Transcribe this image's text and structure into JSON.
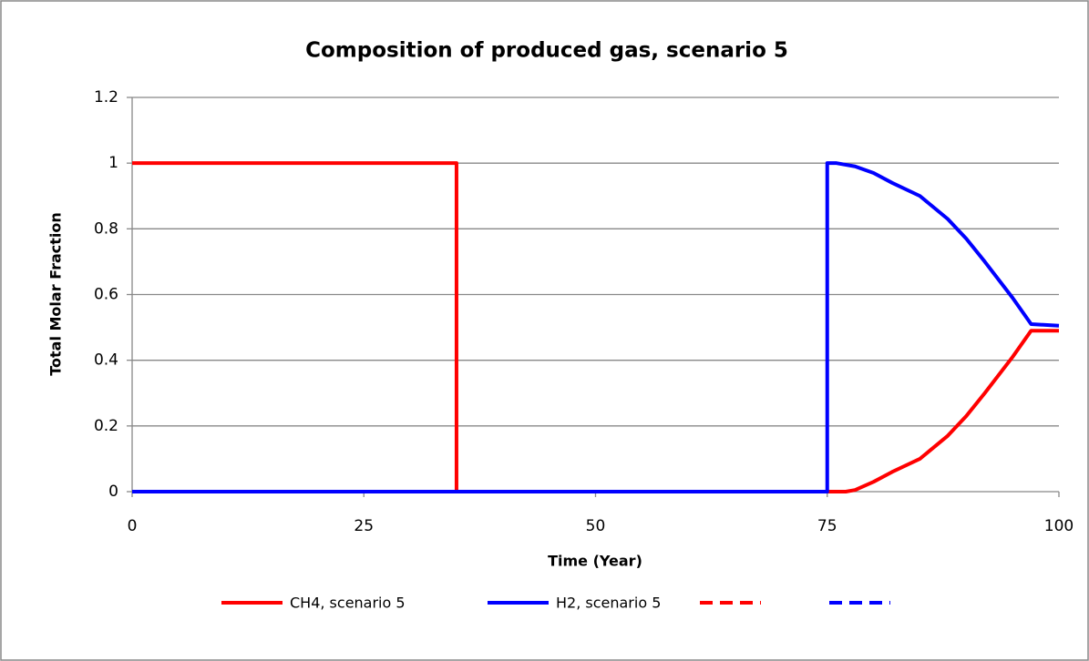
{
  "chart_data": {
    "type": "line",
    "title": "Composition of produced gas, scenario 5",
    "xlabel": "Time (Year)",
    "ylabel": "Total Molar Fraction",
    "xlim": [
      0,
      100
    ],
    "xticks": [
      0,
      25,
      50,
      75,
      100
    ],
    "ylim": [
      0,
      1.2
    ],
    "yticks": [
      0,
      {
        "value": 0.2,
        "label": "0.2"
      },
      {
        "value": 0.4,
        "label": "0.4"
      },
      {
        "value": 0.6,
        "label": "0.6"
      },
      {
        "value": 0.8,
        "label": "0.8"
      },
      1,
      {
        "value": 1.2,
        "label": "1.2"
      }
    ],
    "grid": true,
    "legend": "bottom",
    "series": [
      {
        "name": "CH4, scenario 5",
        "color": "#ff0000",
        "dashed": false,
        "x": [
          0,
          35,
          35,
          75,
          77,
          78,
          80,
          82,
          85,
          88,
          90,
          92,
          95,
          97,
          100
        ],
        "values": [
          1,
          1,
          0,
          0,
          0,
          0.005,
          0.03,
          0.06,
          0.1,
          0.17,
          0.23,
          0.3,
          0.41,
          0.49,
          0.49
        ]
      },
      {
        "name": "H2, scenario 5",
        "color": "#0000ff",
        "dashed": false,
        "x": [
          0,
          75,
          75,
          76,
          78,
          80,
          82,
          85,
          88,
          90,
          92,
          95,
          97,
          100
        ],
        "values": [
          0,
          0,
          1,
          1,
          0.99,
          0.97,
          0.94,
          0.9,
          0.83,
          0.77,
          0.7,
          0.59,
          0.51,
          0.505
        ]
      },
      {
        "color": "#ff0000",
        "dashed": true,
        "x": [
          35,
          75
        ],
        "values": [
          0,
          0
        ]
      },
      {
        "color": "#0000ff",
        "dashed": true,
        "x": [
          35,
          75
        ],
        "values": [
          0,
          0
        ]
      }
    ]
  }
}
